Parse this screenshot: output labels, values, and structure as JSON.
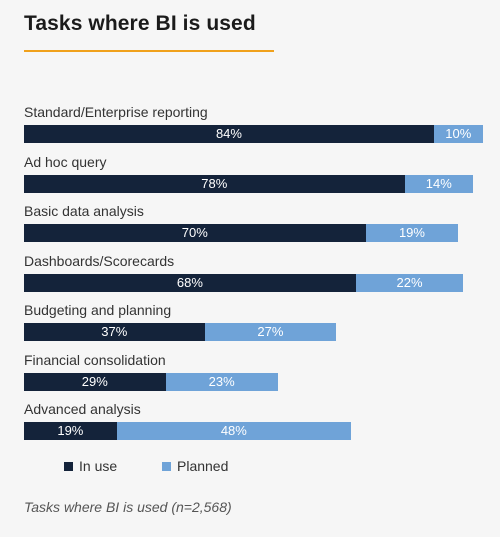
{
  "header": {
    "title": "Tasks where BI is used"
  },
  "chart_data": {
    "type": "bar",
    "orientation": "horizontal",
    "stacked": true,
    "categories": [
      "Standard/Enterprise reporting",
      "Ad hoc query",
      "Basic data analysis",
      "Dashboards/Scorecards",
      "Budgeting and planning",
      "Financial consolidation",
      "Advanced analysis"
    ],
    "series": [
      {
        "name": "In use",
        "color": "#14233a",
        "values": [
          84,
          78,
          70,
          68,
          37,
          29,
          19
        ],
        "labels": [
          "84%",
          "78%",
          "70%",
          "68%",
          "37%",
          "29%",
          "19%"
        ]
      },
      {
        "name": "Planned",
        "color": "#6fa3d8",
        "values": [
          10,
          14,
          19,
          22,
          27,
          23,
          48
        ],
        "labels": [
          "10%",
          "14%",
          "19%",
          "22%",
          "27%",
          "23%",
          "48%"
        ]
      }
    ],
    "xlim": [
      0,
      100
    ],
    "grid": false,
    "legend_position": "bottom-left"
  },
  "legend": {
    "items": [
      "In use",
      "Planned"
    ]
  },
  "footer": {
    "caption": "Tasks where BI is used (n=2,568)"
  }
}
